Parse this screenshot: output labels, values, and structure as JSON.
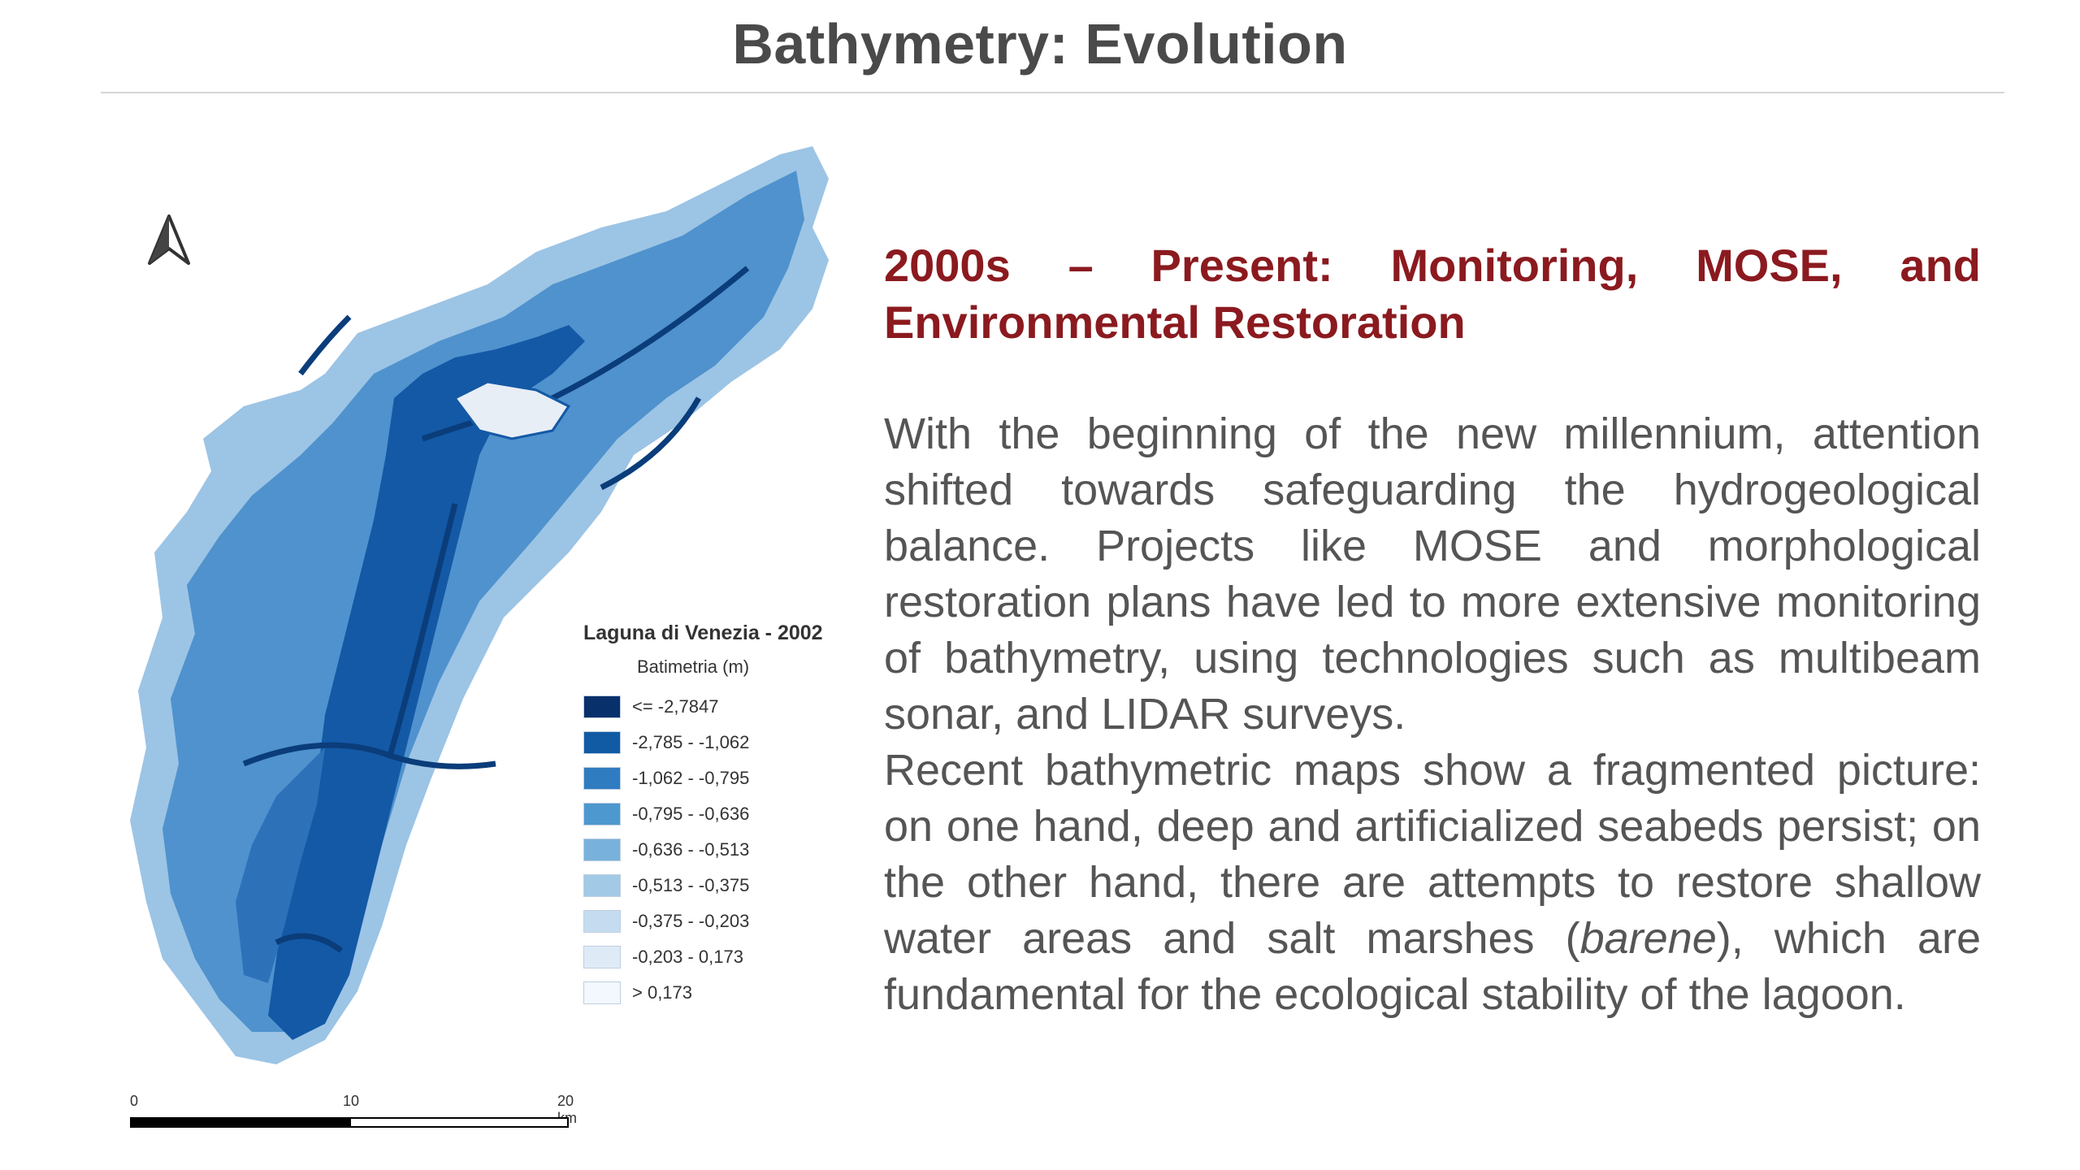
{
  "slide": {
    "title": "Bathymetry: Evolution"
  },
  "map": {
    "legend": {
      "title": "Laguna di Venezia - 2002",
      "subtitle": "Batimetria (m)",
      "items": [
        {
          "label": "<= -2,7847",
          "color": "#08306b"
        },
        {
          "label": "-2,785 - -1,062",
          "color": "#105ba4"
        },
        {
          "label": "-1,062 - -0,795",
          "color": "#2f7cc0"
        },
        {
          "label": "-0,795 - -0,636",
          "color": "#4d98cf"
        },
        {
          "label": "-0,636 - -0,513",
          "color": "#78b2dc"
        },
        {
          "label": "-0,513 - -0,375",
          "color": "#a2c9e6"
        },
        {
          "label": "-0,375 - -0,203",
          "color": "#c5dcf0"
        },
        {
          "label": "-0,203 - 0,173",
          "color": "#deebf7"
        },
        {
          "label": "> 0,173",
          "color": "#f2f8fd"
        }
      ]
    },
    "scale": {
      "ticks": [
        "0",
        "10",
        "20 km"
      ]
    }
  },
  "content": {
    "heading": "2000s – Present: Monitoring, MOSE, and Environmental Restoration",
    "paragraph1": "With the beginning of the new millennium, attention shifted towards safeguarding the hydrogeological balance. Projects like MOSE and morphological restoration plans have led to more extensive monitoring of bathymetry, using technologies such as multibeam sonar, and LIDAR surveys.",
    "paragraph2_before": "Recent bathymetric maps show a fragmented picture: on one hand, deep and artificialized seabeds persist; on the other hand, there are attempts to restore shallow water areas and salt marshes (",
    "paragraph2_italic": "barene",
    "paragraph2_after": "), which are fundamental for the ecological stability of the lagoon."
  }
}
